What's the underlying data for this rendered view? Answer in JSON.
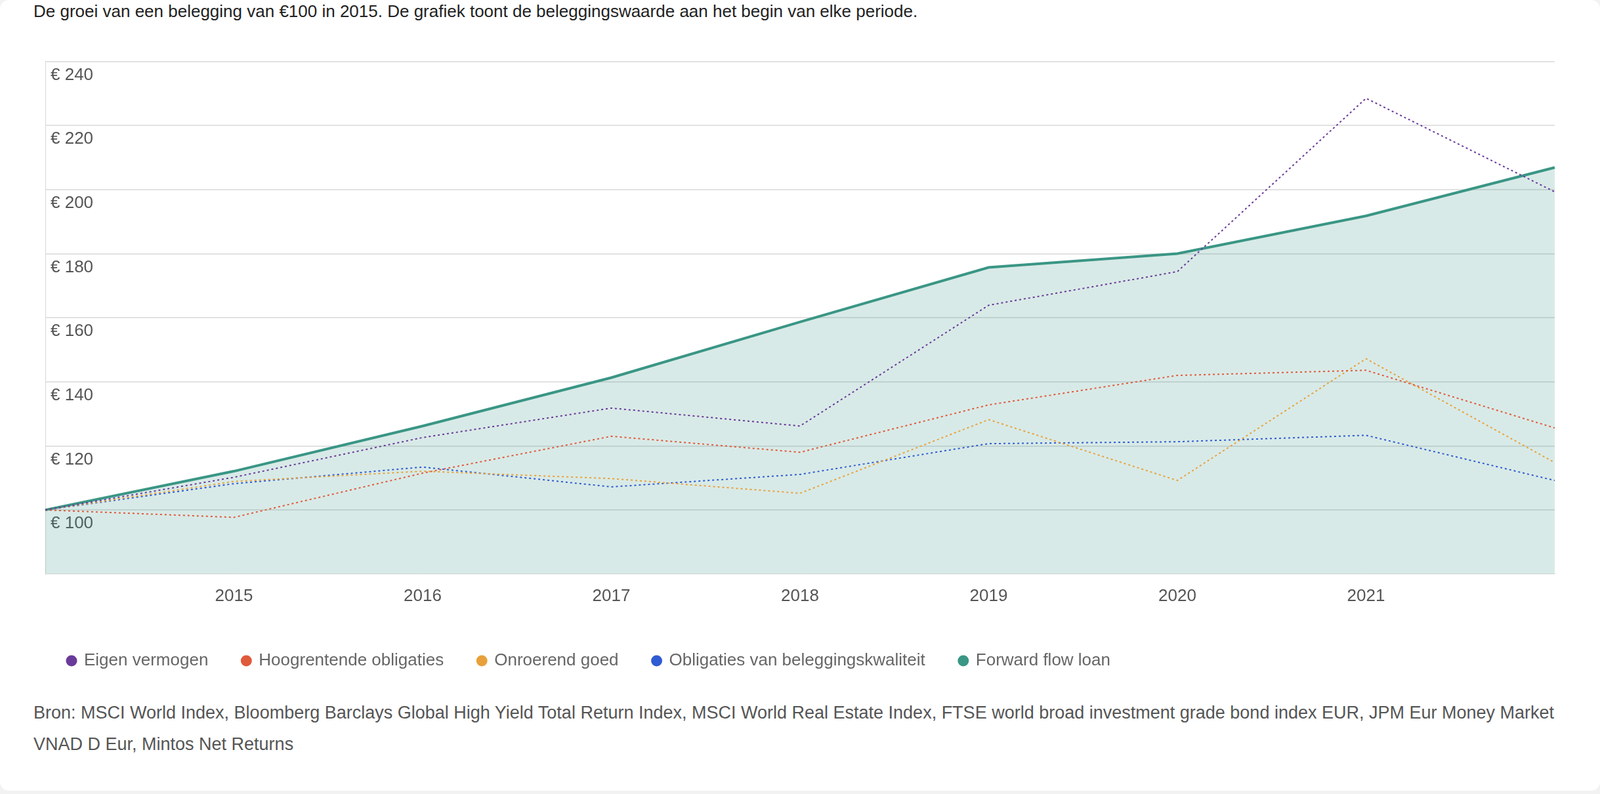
{
  "chart_data": {
    "type": "line",
    "title": "De groei van een belegging van €100 in 2015. De grafiek toont de beleggingswaarde aan het begin van elke periode.",
    "source": "Bron: MSCI World Index, Bloomberg Barclays Global High Yield Total Return Index, MSCI World Real Estate Index, FTSE world broad investment grade bond index EUR, JPM Eur Money Market VNAD D Eur, Mintos Net Returns",
    "categories": [
      null,
      "2015",
      "2016",
      "2017",
      "2018",
      "2019",
      "2020",
      "2021",
      null
    ],
    "series": [
      {
        "name": "Forward flow loan",
        "color": "#3a9685",
        "type": "area",
        "line_style": "solid",
        "values": [
          100,
          112.1,
          126.2,
          141.3,
          158.7,
          175.7,
          180,
          191.8,
          206.9
        ]
      },
      {
        "name": "Eigen vermogen",
        "color": "#6a3a9a",
        "type": "line",
        "line_style": "dotted",
        "values": [
          100,
          110.2,
          122.6,
          131.8,
          126.2,
          163.9,
          174.4,
          228.5,
          199.3
        ]
      },
      {
        "name": "Hoogrentende obligaties",
        "color": "#e05a3c",
        "type": "line",
        "line_style": "dotted",
        "values": [
          100,
          97.7,
          111.5,
          123,
          118,
          132.8,
          142,
          143.6,
          125.6
        ]
      },
      {
        "name": "Onroerend goed",
        "color": "#e8a13a",
        "type": "line",
        "line_style": "dotted",
        "values": [
          100,
          108.9,
          112.1,
          109.8,
          105.2,
          128.2,
          109.2,
          147.2,
          114.8
        ]
      },
      {
        "name": "Obligaties van beleggingskwaliteit",
        "color": "#2f5bd3",
        "type": "line",
        "line_style": "dotted",
        "values": [
          100,
          108.2,
          113.4,
          107.2,
          111.1,
          120.7,
          121.3,
          123.3,
          109.2
        ]
      }
    ],
    "ylim": [
      80,
      240
    ],
    "yticks": [
      {
        "value": 100,
        "label": "€ 100"
      },
      {
        "value": 120,
        "label": "€ 120"
      },
      {
        "value": 140,
        "label": "€ 140"
      },
      {
        "value": 160,
        "label": "€ 160"
      },
      {
        "value": 180,
        "label": "€ 180"
      },
      {
        "value": 200,
        "label": "€ 200"
      },
      {
        "value": 220,
        "label": "€ 220"
      },
      {
        "value": 240,
        "label": "€ 240"
      }
    ],
    "grid": true,
    "legend": "bottom"
  }
}
